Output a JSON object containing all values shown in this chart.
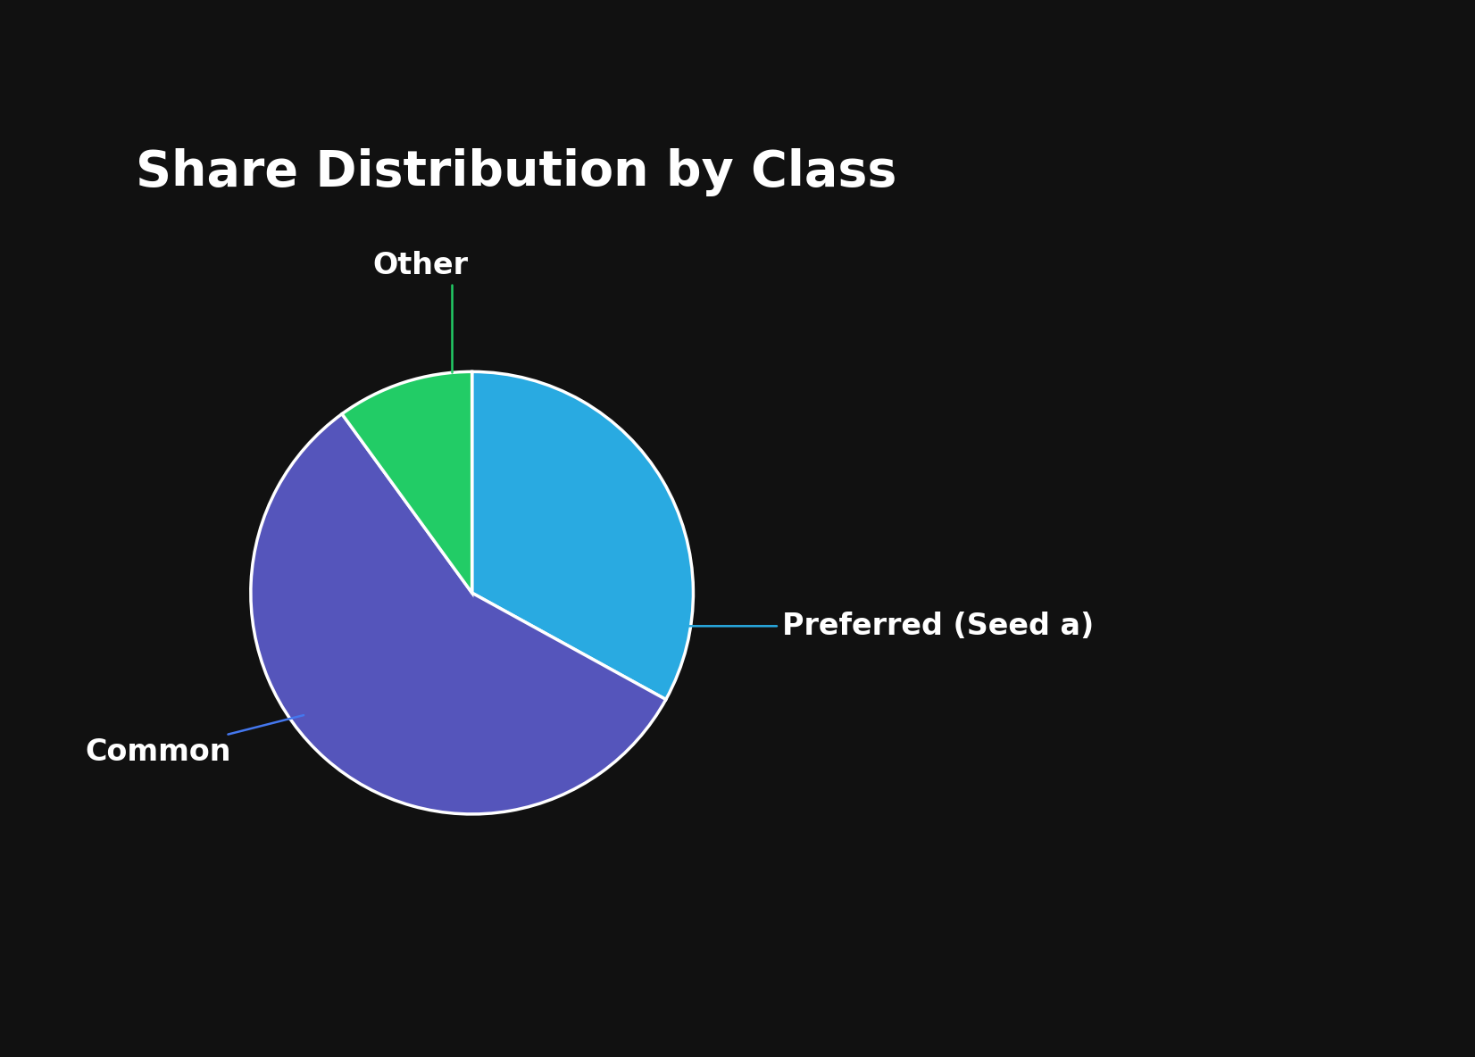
{
  "title": "Share Distribution by Class",
  "title_color": "#ffffff",
  "title_fontsize": 40,
  "title_fontweight": "bold",
  "background_color": "#111111",
  "slices": [
    {
      "label": "Preferred (Seed a)",
      "value": 33,
      "color": "#29aae1"
    },
    {
      "label": "Common",
      "value": 57,
      "color": "#5555bb"
    },
    {
      "label": "Other",
      "value": 10,
      "color": "#22cc66"
    }
  ],
  "wedge_edge_color": "#ffffff",
  "wedge_edge_width": 2.5,
  "label_color": "#ffffff",
  "label_fontsize": 24,
  "label_fontweight": "bold",
  "connector_color_preferred": "#29aae1",
  "connector_color_common": "#4477ee",
  "connector_color_other": "#22cc66",
  "start_angle": 90
}
